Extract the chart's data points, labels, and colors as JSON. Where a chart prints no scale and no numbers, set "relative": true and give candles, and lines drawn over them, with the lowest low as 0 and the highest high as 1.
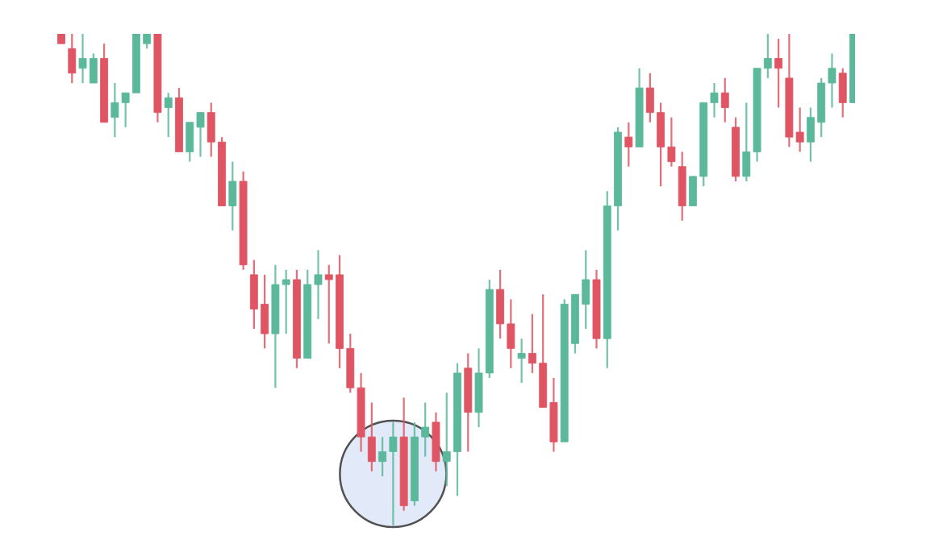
{
  "chart_data": {
    "type": "candlestick",
    "relative": true,
    "categories": [
      null,
      null,
      null,
      null,
      null,
      null,
      null,
      null,
      null,
      null,
      null,
      null,
      null,
      null,
      null,
      null,
      null,
      null,
      null,
      null,
      null,
      null,
      null,
      null,
      null,
      null,
      null,
      null,
      null,
      null,
      null,
      null,
      null,
      null,
      null,
      null,
      null,
      null,
      null,
      null,
      null,
      null,
      null,
      null,
      null,
      null,
      null,
      null,
      null,
      null,
      null,
      null,
      null,
      null,
      null,
      null,
      null,
      null,
      null,
      null,
      null,
      null,
      null,
      null,
      null,
      null,
      null,
      null,
      null,
      null,
      null,
      null,
      null,
      null,
      null
    ],
    "ohlc": [
      [
        1.0,
        1.0,
        0.98,
        0.98
      ],
      [
        0.97,
        1.0,
        0.9,
        0.92
      ],
      [
        0.93,
        1.0,
        0.9,
        0.95
      ],
      [
        0.9,
        0.96,
        0.9,
        0.95
      ],
      [
        0.95,
        0.98,
        0.82,
        0.82
      ],
      [
        0.83,
        0.9,
        0.79,
        0.86
      ],
      [
        0.86,
        0.88,
        0.81,
        0.88
      ],
      [
        0.88,
        1.0,
        0.88,
        1.0
      ],
      [
        0.98,
        1.0,
        0.97,
        1.0
      ],
      [
        1.0,
        1.0,
        0.82,
        0.84
      ],
      [
        0.85,
        0.88,
        0.79,
        0.87
      ],
      [
        0.87,
        0.89,
        0.76,
        0.76
      ],
      [
        0.76,
        0.82,
        0.74,
        0.82
      ],
      [
        0.81,
        0.84,
        0.75,
        0.84
      ],
      [
        0.84,
        0.86,
        0.75,
        0.78
      ],
      [
        0.78,
        0.79,
        0.65,
        0.65
      ],
      [
        0.65,
        0.74,
        0.6,
        0.7
      ],
      [
        0.7,
        0.72,
        0.52,
        0.53
      ],
      [
        0.51,
        0.54,
        0.4,
        0.44
      ],
      [
        0.45,
        0.51,
        0.36,
        0.39
      ],
      [
        0.39,
        0.53,
        0.28,
        0.49
      ],
      [
        0.49,
        0.52,
        0.39,
        0.5
      ],
      [
        0.5,
        0.52,
        0.32,
        0.34
      ],
      [
        0.34,
        0.52,
        0.34,
        0.49
      ],
      [
        0.49,
        0.56,
        0.42,
        0.51
      ],
      [
        0.51,
        0.53,
        0.37,
        0.5
      ],
      [
        0.51,
        0.55,
        0.32,
        0.36
      ],
      [
        0.36,
        0.39,
        0.27,
        0.28
      ],
      [
        0.28,
        0.31,
        0.15,
        0.18
      ],
      [
        0.18,
        0.25,
        0.11,
        0.13
      ],
      [
        0.13,
        0.18,
        0.1,
        0.15
      ],
      [
        0.15,
        0.21,
        0.0,
        0.18
      ],
      [
        0.18,
        0.26,
        0.03,
        0.04
      ],
      [
        0.05,
        0.21,
        0.04,
        0.18
      ],
      [
        0.18,
        0.25,
        0.14,
        0.2
      ],
      [
        0.21,
        0.23,
        0.11,
        0.13
      ],
      [
        0.13,
        0.27,
        0.08,
        0.15
      ],
      [
        0.15,
        0.33,
        0.06,
        0.31
      ],
      [
        0.32,
        0.35,
        0.15,
        0.23
      ],
      [
        0.23,
        0.36,
        0.2,
        0.31
      ],
      [
        0.31,
        0.5,
        0.3,
        0.48
      ],
      [
        0.48,
        0.52,
        0.38,
        0.41
      ],
      [
        0.41,
        0.46,
        0.32,
        0.36
      ],
      [
        0.34,
        0.38,
        0.29,
        0.35
      ],
      [
        0.35,
        0.43,
        0.31,
        0.33
      ],
      [
        0.33,
        0.47,
        0.24,
        0.24
      ],
      [
        0.25,
        0.3,
        0.15,
        0.17
      ],
      [
        0.17,
        0.46,
        0.17,
        0.45
      ],
      [
        0.37,
        0.47,
        0.35,
        0.47
      ],
      [
        0.45,
        0.56,
        0.4,
        0.5
      ],
      [
        0.5,
        0.52,
        0.36,
        0.38
      ],
      [
        0.38,
        0.68,
        0.32,
        0.65
      ],
      [
        0.65,
        0.81,
        0.6,
        0.8
      ],
      [
        0.79,
        0.82,
        0.73,
        0.77
      ],
      [
        0.77,
        0.93,
        0.77,
        0.89
      ],
      [
        0.89,
        0.92,
        0.82,
        0.84
      ],
      [
        0.84,
        0.86,
        0.69,
        0.77
      ],
      [
        0.77,
        0.83,
        0.73,
        0.74
      ],
      [
        0.73,
        0.76,
        0.62,
        0.65
      ],
      [
        0.65,
        0.71,
        0.65,
        0.71
      ],
      [
        0.71,
        0.86,
        0.69,
        0.86
      ],
      [
        0.86,
        0.9,
        0.83,
        0.88
      ],
      [
        0.88,
        0.91,
        0.82,
        0.85
      ],
      [
        0.81,
        0.83,
        0.7,
        0.71
      ],
      [
        0.71,
        0.86,
        0.7,
        0.76
      ],
      [
        0.76,
        0.93,
        0.74,
        0.93
      ],
      [
        0.93,
        1.0,
        0.91,
        0.95
      ],
      [
        0.95,
        0.99,
        0.85,
        0.93
      ],
      [
        0.91,
        1.0,
        0.77,
        0.79
      ],
      [
        0.8,
        0.85,
        0.76,
        0.78
      ],
      [
        0.78,
        0.85,
        0.74,
        0.83
      ],
      [
        0.82,
        0.91,
        0.79,
        0.9
      ],
      [
        0.9,
        0.96,
        0.85,
        0.93
      ],
      [
        0.92,
        0.93,
        0.83,
        0.86
      ],
      [
        0.86,
        1.0,
        0.86,
        1.0
      ]
    ],
    "colors": [
      "#e05563",
      "#e05563",
      "#5bb89a",
      "#5bb89a",
      "#e05563",
      "#5bb89a",
      "#5bb89a",
      "#5bb89a",
      "#5bb89a",
      "#e05563",
      "#5bb89a",
      "#e05563",
      "#5bb89a",
      "#5bb89a",
      "#e05563",
      "#e05563",
      "#5bb89a",
      "#e05563",
      "#e05563",
      "#e05563",
      "#5bb89a",
      "#5bb89a",
      "#e05563",
      "#5bb89a",
      "#5bb89a",
      "#e05563",
      "#e05563",
      "#e05563",
      "#e05563",
      "#e05563",
      "#5bb89a",
      "#5bb89a",
      "#e05563",
      "#5bb89a",
      "#5bb89a",
      "#e05563",
      "#5bb89a",
      "#5bb89a",
      "#e05563",
      "#5bb89a",
      "#5bb89a",
      "#e05563",
      "#e05563",
      "#5bb89a",
      "#e05563",
      "#e05563",
      "#e05563",
      "#5bb89a",
      "#5bb89a",
      "#5bb89a",
      "#e05563",
      "#5bb89a",
      "#5bb89a",
      "#e05563",
      "#5bb89a",
      "#e05563",
      "#e05563",
      "#e05563",
      "#e05563",
      "#5bb89a",
      "#5bb89a",
      "#5bb89a",
      "#e05563",
      "#e05563",
      "#5bb89a",
      "#5bb89a",
      "#5bb89a",
      "#e05563",
      "#e05563",
      "#e05563",
      "#5bb89a",
      "#5bb89a",
      "#5bb89a",
      "#e05563",
      "#5bb89a"
    ]
  }
}
